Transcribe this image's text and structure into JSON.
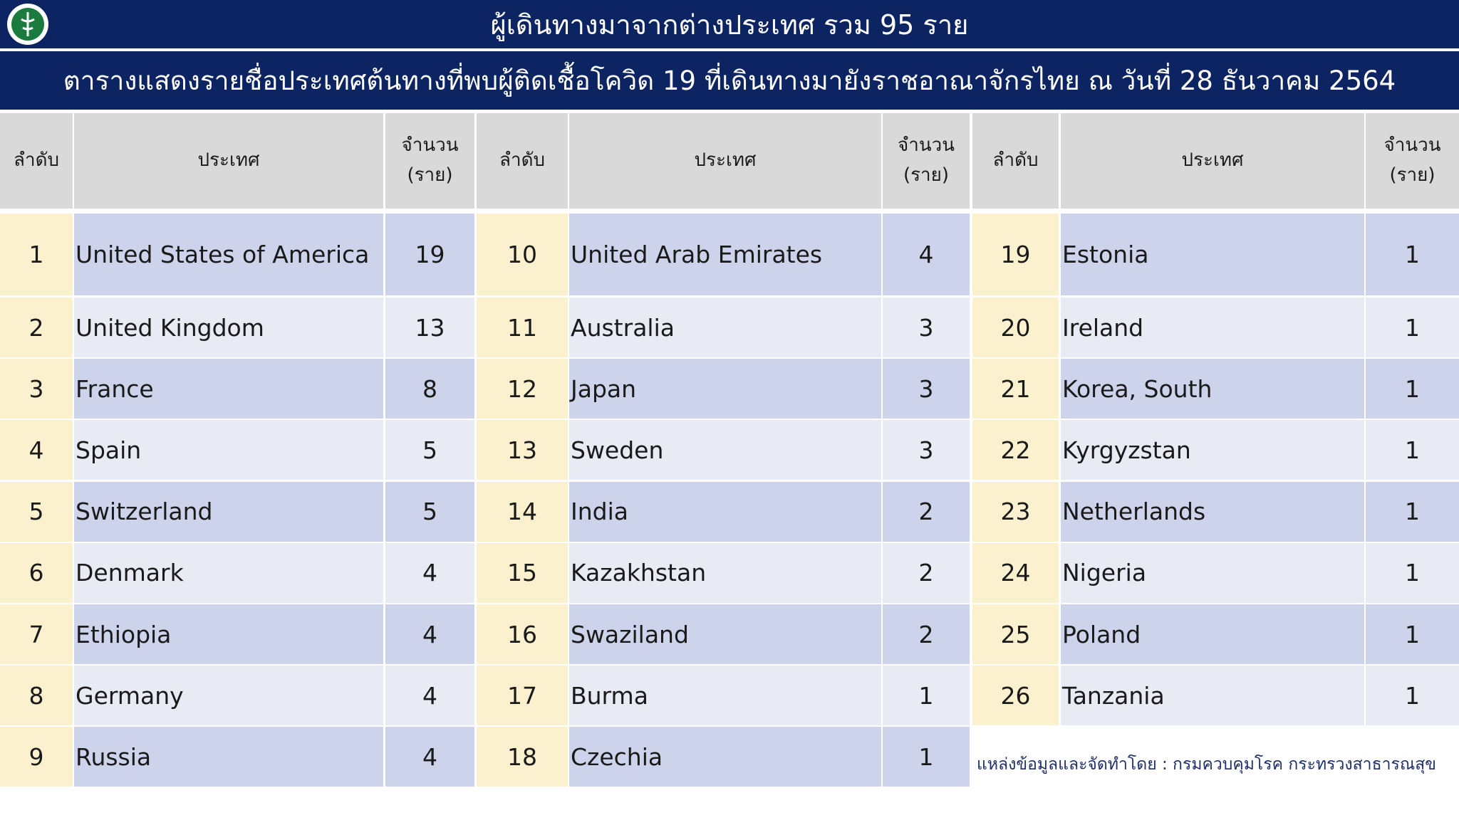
{
  "header": {
    "title": "ผู้เดินทางมาจากต่างประเทศ รวม 95 ราย",
    "subtitle": "ตารางแสดงรายชื่อประเทศต้นทางที่พบผู้ติดเชื้อโควิด 19 ที่เดินทางมายังราชอาณาจักรไทย ณ วันที่ 28 ธันวาคม 2564"
  },
  "table": {
    "columns": [
      "ลำดับ",
      "ประเทศ",
      "จำนวน\n(ราย)"
    ],
    "groups": [
      {
        "rows": [
          [
            1,
            "United States of America",
            19
          ],
          [
            2,
            "United Kingdom",
            13
          ],
          [
            3,
            "France",
            8
          ],
          [
            4,
            "Spain",
            5
          ],
          [
            5,
            "Switzerland",
            5
          ],
          [
            6,
            "Denmark",
            4
          ],
          [
            7,
            "Ethiopia",
            4
          ],
          [
            8,
            "Germany",
            4
          ],
          [
            9,
            "Russia",
            4
          ]
        ]
      },
      {
        "rows": [
          [
            10,
            "United Arab Emirates",
            4
          ],
          [
            11,
            "Australia",
            3
          ],
          [
            12,
            "Japan",
            3
          ],
          [
            13,
            "Sweden",
            3
          ],
          [
            14,
            "India",
            2
          ],
          [
            15,
            "Kazakhstan",
            2
          ],
          [
            16,
            "Swaziland",
            2
          ],
          [
            17,
            "Burma",
            1
          ],
          [
            18,
            "Czechia",
            1
          ]
        ]
      },
      {
        "rows": [
          [
            19,
            "Estonia",
            1
          ],
          [
            20,
            "Ireland",
            1
          ],
          [
            21,
            "Korea, South",
            1
          ],
          [
            22,
            "Kyrgyzstan",
            1
          ],
          [
            23,
            "Netherlands",
            1
          ],
          [
            24,
            "Nigeria",
            1
          ],
          [
            25,
            "Poland",
            1
          ],
          [
            26,
            "Tanzania",
            1
          ]
        ]
      }
    ]
  },
  "source": "แหล่งข้อมูลและจัดทำโดย : กรมควบคุมโรค กระทรวงสาธารณสุข"
}
